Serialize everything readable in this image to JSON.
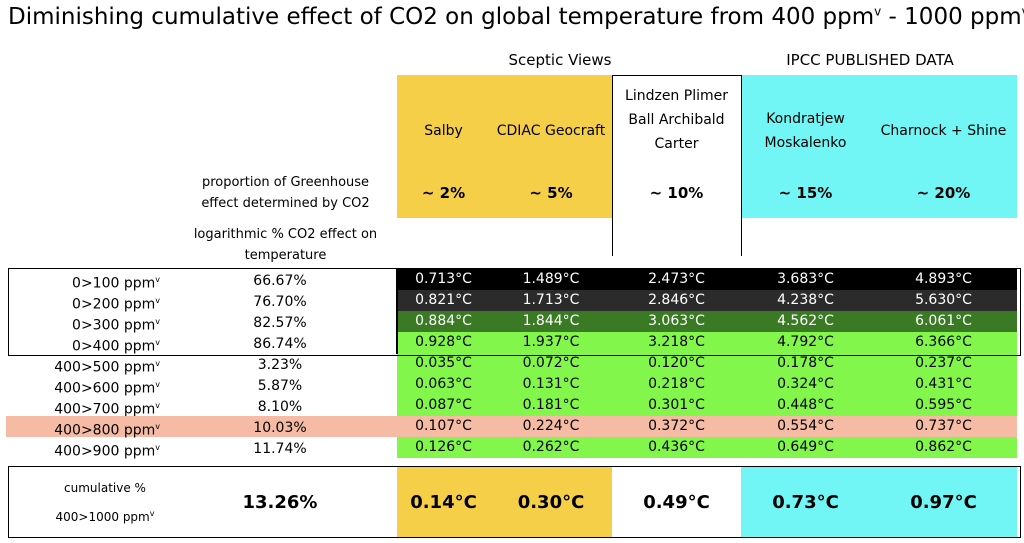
{
  "title": "Diminishing cumulative effect of CO2 on global temperature from 400 ppm",
  "title_sup1": "v",
  "title_mid": " - 1000 ppm",
  "title_sup2": "v",
  "groups": {
    "sceptic": "Sceptic Views",
    "ipcc": "IPCC PUBLISHED DATA"
  },
  "colors": {
    "orange": "#f6cf48",
    "cyan": "#71f6f5",
    "black": "#000000",
    "darkgray": "#2b2b2b",
    "darkgreen": "#3a7a24",
    "green": "#82f64b",
    "salmon": "#f5bba4"
  },
  "row_headers": {
    "proportion": "proportion of Greenhouse effect  determined by CO2",
    "log_effect": "logarithmic % CO2 effect on temperature"
  },
  "chart_data": {
    "type": "table",
    "columns": [
      {
        "name": "Salby",
        "share": "~ 2%",
        "cumulative": "0.14°C"
      },
      {
        "name": "CDIAC Geocraft",
        "share": "~ 5%",
        "cumulative": "0.30°C"
      },
      {
        "name": "Lindzen Plimer Ball Archibald Carter",
        "share": "~ 10%",
        "cumulative": "0.49°C"
      },
      {
        "name": "Kondratjew Moskalenko",
        "share": "~ 15%",
        "cumulative": "0.73°C"
      },
      {
        "name": "Charnock + Shine",
        "share": "~ 20%",
        "cumulative": "0.97°C"
      }
    ],
    "rows": [
      {
        "range": "0>100 ppm",
        "sup": "v",
        "log_pct": "66.67%",
        "values": [
          "0.713°C",
          "1.489°C",
          "2.473°C",
          "3.683°C",
          "4.893°C"
        ]
      },
      {
        "range": "0>200 ppm",
        "sup": "v",
        "log_pct": "76.70%",
        "values": [
          "0.821°C",
          "1.713°C",
          "2.846°C",
          "4.238°C",
          "5.630°C"
        ]
      },
      {
        "range": "0>300 ppm",
        "sup": "v",
        "log_pct": "82.57%",
        "values": [
          "0.884°C",
          "1.844°C",
          "3.063°C",
          "4.562°C",
          "6.061°C"
        ]
      },
      {
        "range": "0>400 ppm",
        "sup": "v",
        "log_pct": "86.74%",
        "values": [
          "0.928°C",
          "1.937°C",
          "3.218°C",
          "4.792°C",
          "6.366°C"
        ]
      },
      {
        "range": "400>500 ppm",
        "sup": "v",
        "log_pct": "3.23%",
        "values": [
          "0.035°C",
          "0.072°C",
          "0.120°C",
          "0.178°C",
          "0.237°C"
        ]
      },
      {
        "range": "400>600 ppm",
        "sup": "v",
        "log_pct": "5.87%",
        "values": [
          "0.063°C",
          "0.131°C",
          "0.218°C",
          "0.324°C",
          "0.431°C"
        ]
      },
      {
        "range": "400>700 ppm",
        "sup": "v",
        "log_pct": "8.10%",
        "values": [
          "0.087°C",
          "0.181°C",
          "0.301°C",
          "0.448°C",
          "0.595°C"
        ]
      },
      {
        "range": "400>800 ppm",
        "sup": "v",
        "log_pct": "10.03%",
        "values": [
          "0.107°C",
          "0.224°C",
          "0.372°C",
          "0.554°C",
          "0.737°C"
        ]
      },
      {
        "range": "400>900 ppm",
        "sup": "v",
        "log_pct": "11.74%",
        "values": [
          "0.126°C",
          "0.262°C",
          "0.436°C",
          "0.649°C",
          "0.862°C"
        ]
      }
    ],
    "cumulative_row": {
      "label1": "cumulative %",
      "label2": "400>1000 ppm",
      "label2_sup": "v",
      "log_pct": "13.26%"
    }
  }
}
